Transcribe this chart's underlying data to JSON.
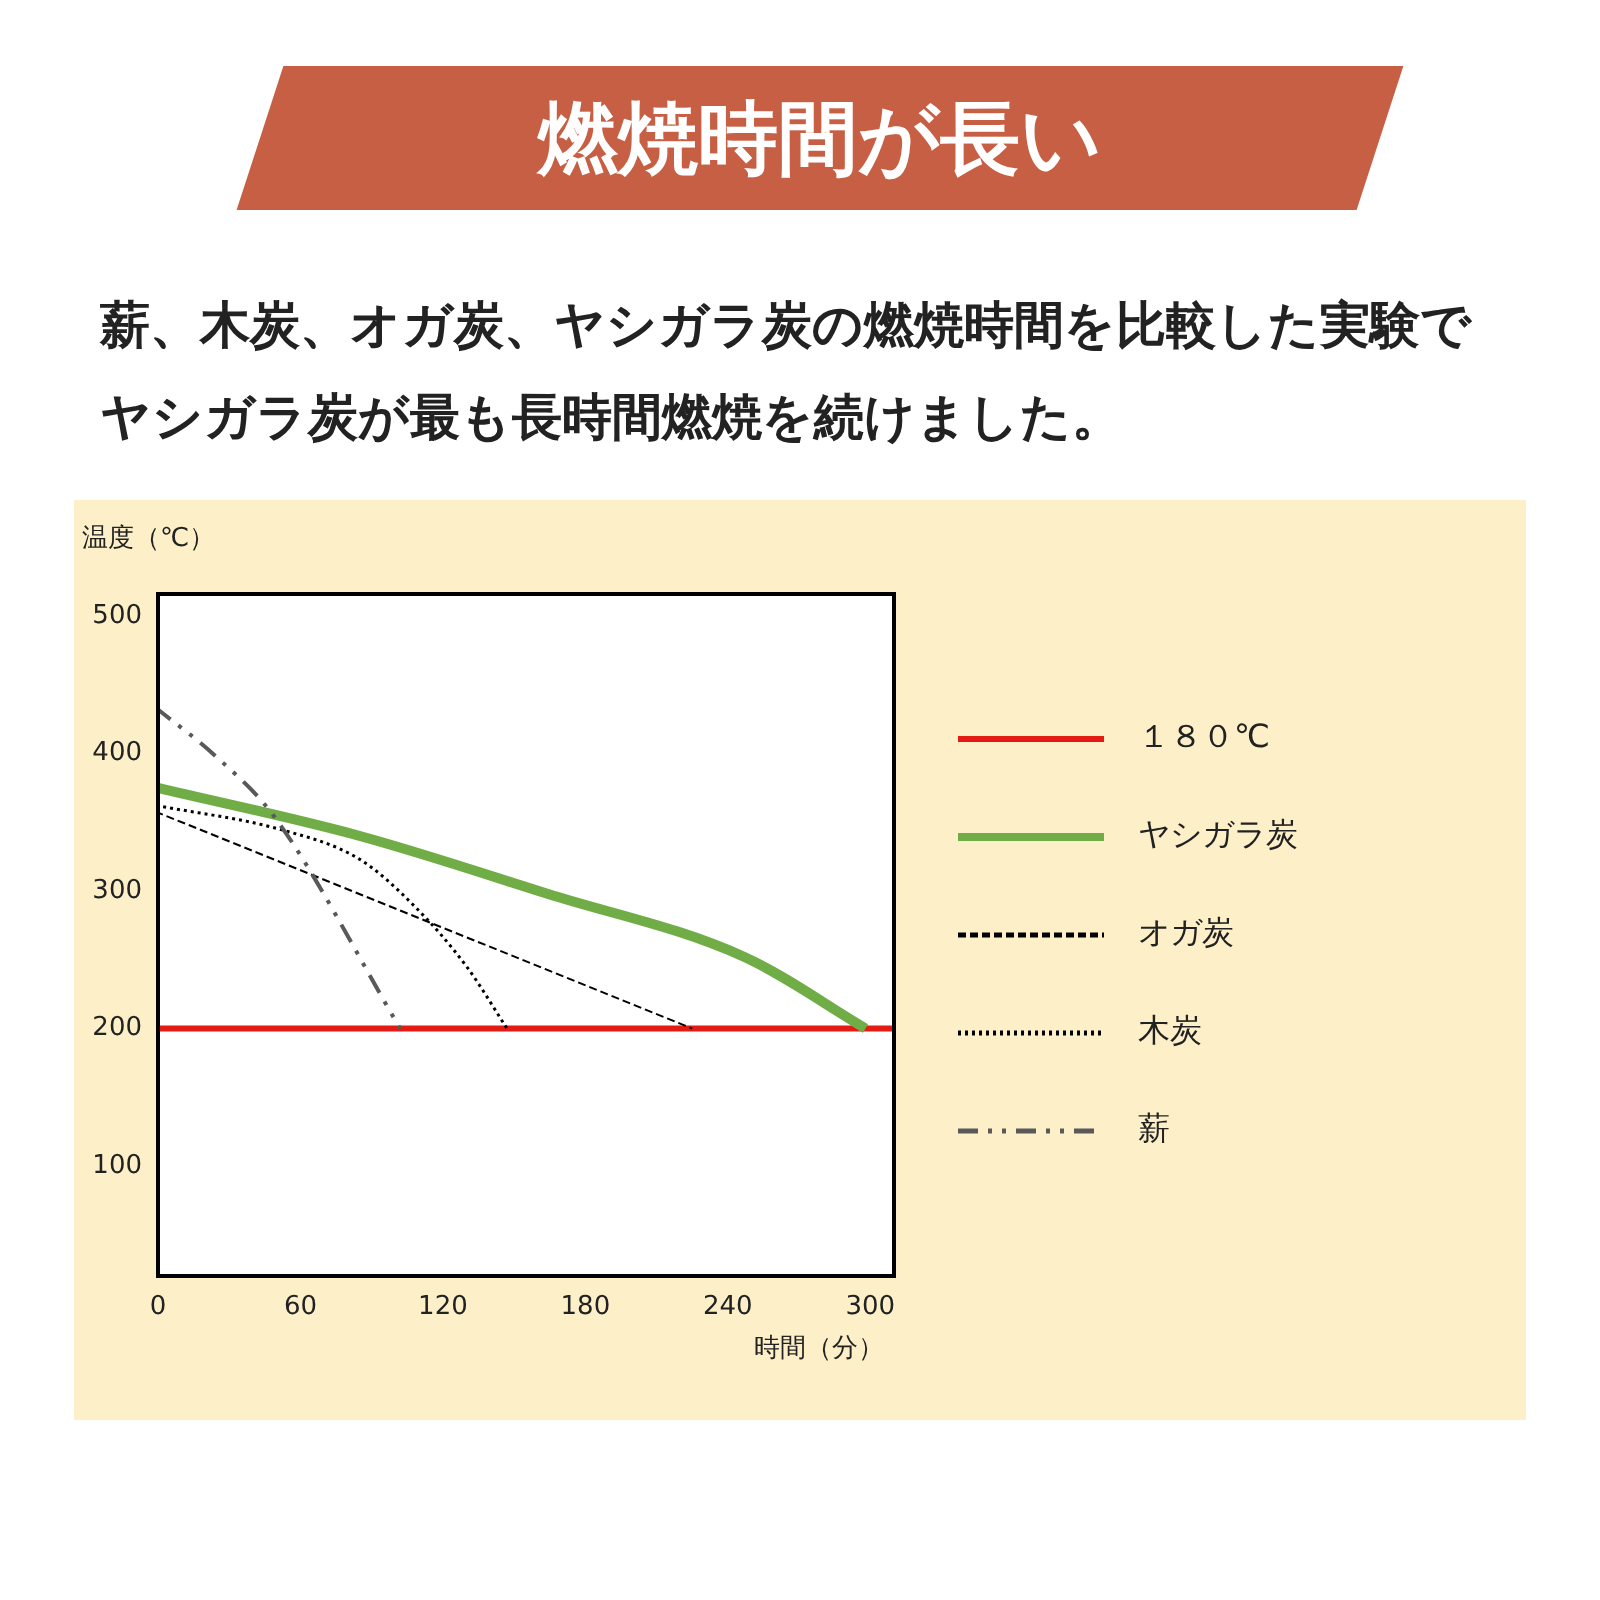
{
  "chart_data": {
    "type": "line",
    "title": "燃焼時間が長い",
    "subtitle": "薪、木炭、オガ炭、ヤシガラ炭の燃焼時間を比較した実験でヤシガラ炭が最も長時間燃焼を続けました。",
    "xlabel": "時間（分）",
    "ylabel": "温度（℃）",
    "xlim": [
      0,
      310
    ],
    "xticks": [
      0,
      60,
      120,
      180,
      240,
      300
    ],
    "ylim": [
      20,
      516
    ],
    "yticks": [
      100,
      200,
      300,
      400,
      500
    ],
    "grid": false,
    "legend": "right",
    "marker": "none",
    "series": [
      {
        "name": "１８０℃",
        "color": "#e31b13",
        "line_style": "solid",
        "x": [
          0,
          310
        ],
        "values": [
          200,
          200
        ]
      },
      {
        "name": "ヤシガラ炭",
        "color": "#70ad47",
        "line_style": "solid",
        "x": [
          0,
          85,
          164,
          247,
          298
        ],
        "values": [
          375,
          340,
          298,
          252,
          200
        ]
      },
      {
        "name": "オガ炭",
        "color": "#000000",
        "line_style": "dashed",
        "x": [
          0,
          225
        ],
        "values": [
          357,
          200
        ]
      },
      {
        "name": "木炭",
        "color": "#000000",
        "line_style": "dotted",
        "x": [
          0,
          51,
          85,
          108,
          130,
          147
        ],
        "values": [
          362,
          345,
          323,
          289,
          245,
          200
        ]
      },
      {
        "name": "薪",
        "color": "#595959",
        "line_style": "dashdot",
        "x": [
          0,
          23,
          49,
          102
        ],
        "values": [
          432,
          400,
          354,
          200
        ]
      }
    ]
  }
}
